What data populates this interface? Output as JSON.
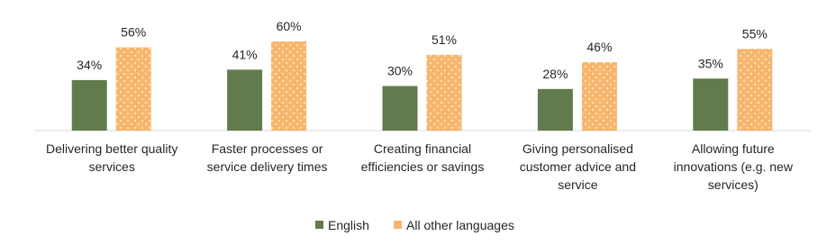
{
  "chart_data": {
    "type": "bar",
    "categories": [
      "Delivering better quality services",
      "Faster processes or service delivery times",
      "Creating financial efficiencies or savings",
      "Giving personalised customer advice and service",
      "Allowing future innovations (e.g. new services)"
    ],
    "series": [
      {
        "name": "English",
        "color": "#627b4c",
        "values": [
          34,
          41,
          30,
          28,
          35
        ],
        "value_labels": [
          "34%",
          "41%",
          "30%",
          "28%",
          "35%"
        ]
      },
      {
        "name": "All other languages",
        "color": "#f8b56c",
        "values": [
          56,
          60,
          51,
          46,
          55
        ],
        "value_labels": [
          "56%",
          "60%",
          "51%",
          "46%",
          "55%"
        ]
      }
    ],
    "legend": "bottom"
  }
}
